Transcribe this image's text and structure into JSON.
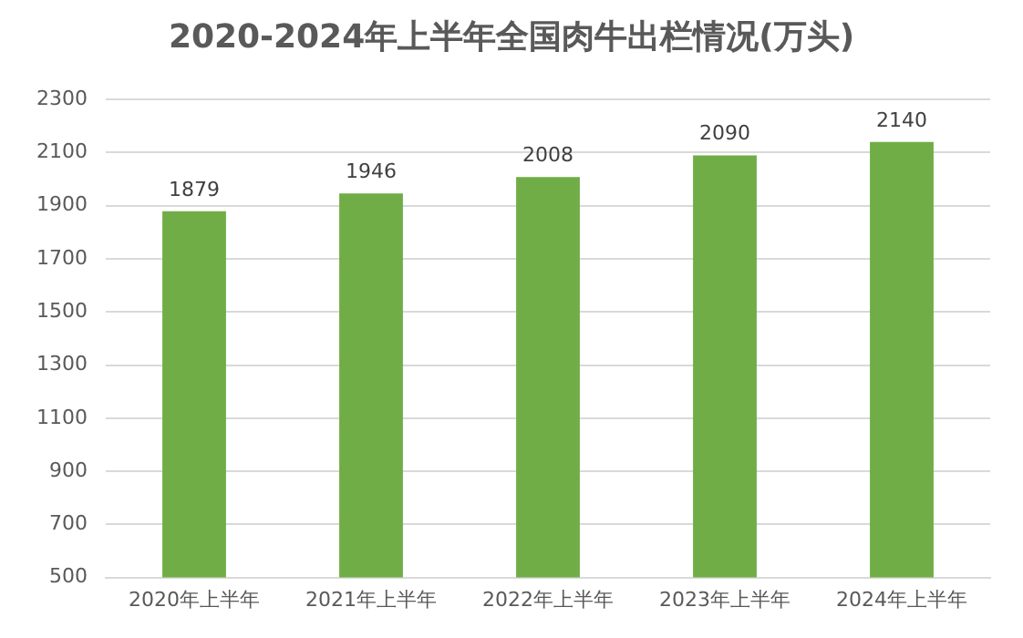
{
  "chart_data": {
    "type": "bar",
    "title": "2020-2024年上半年全国肉牛出栏情况(万头)",
    "categories": [
      "2020年上半年",
      "2021年上半年",
      "2022年上半年",
      "2023年上半年",
      "2024年上半年"
    ],
    "values": [
      1879,
      1946,
      2008,
      2090,
      2140
    ],
    "color": "#70ad47",
    "ylim": [
      500,
      2300
    ],
    "yticks": [
      500,
      700,
      900,
      1100,
      1300,
      1500,
      1700,
      1900,
      2100,
      2300
    ],
    "grid": "y",
    "legend": false,
    "data_labels": true
  }
}
